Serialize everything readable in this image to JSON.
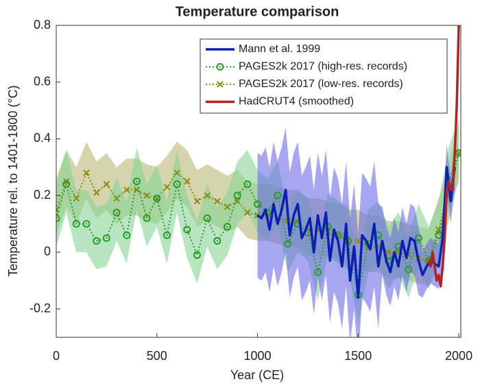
{
  "chart_data": {
    "type": "line",
    "title": "Temperature comparison",
    "x_label": "Year (CE)",
    "y_label": "Temperature rel. to 1401-1800 (°C)",
    "xlim": [
      0,
      2010
    ],
    "ylim": [
      -0.3,
      0.8
    ],
    "xticks": [
      0,
      500,
      1000,
      1500,
      2000
    ],
    "yticks": [
      -0.2,
      0,
      0.2,
      0.4,
      0.6,
      0.8
    ],
    "grid": false,
    "legend": "upper right",
    "series": [
      {
        "name": "PAGES2k 2017 (low-res. records)",
        "color": "#8a8a10",
        "band_color": "#b9b775",
        "marker": "x",
        "linestyle": "dotted",
        "x": [
          0,
          50,
          100,
          150,
          200,
          250,
          300,
          350,
          400,
          450,
          500,
          550,
          600,
          650,
          700,
          750,
          800,
          850,
          900,
          950,
          1000,
          1050,
          1100,
          1150,
          1200,
          1250,
          1300,
          1350,
          1400,
          1450,
          1500,
          1550,
          1600,
          1650,
          1700,
          1750,
          1800,
          1850,
          1900,
          1950,
          2000
        ],
        "values": [
          0.15,
          0.25,
          0.19,
          0.28,
          0.21,
          0.24,
          0.19,
          0.22,
          0.22,
          0.2,
          0.19,
          0.23,
          0.28,
          0.25,
          0.18,
          0.2,
          0.18,
          0.16,
          0.18,
          0.14,
          0.13,
          0.13,
          0.12,
          0.11,
          0.11,
          0.08,
          0.08,
          0.07,
          0.06,
          0.04,
          0.04,
          0.02,
          0.02,
          0.0,
          0.0,
          -0.01,
          -0.02,
          -0.03,
          0.08,
          0.2,
          0.35
        ],
        "lower": [
          0.06,
          0.16,
          0.1,
          0.19,
          0.12,
          0.15,
          0.1,
          0.13,
          0.13,
          0.11,
          0.1,
          0.14,
          0.19,
          0.16,
          0.09,
          0.11,
          0.09,
          0.07,
          0.09,
          0.05,
          0.04,
          0.04,
          0.03,
          0.02,
          0.02,
          -0.01,
          -0.01,
          -0.02,
          -0.03,
          -0.05,
          -0.05,
          -0.07,
          -0.07,
          -0.09,
          -0.09,
          -0.1,
          -0.11,
          -0.12,
          -0.01,
          0.11,
          0.26
        ],
        "upper": [
          0.26,
          0.36,
          0.3,
          0.39,
          0.32,
          0.35,
          0.3,
          0.33,
          0.33,
          0.31,
          0.3,
          0.34,
          0.39,
          0.36,
          0.29,
          0.31,
          0.29,
          0.27,
          0.29,
          0.25,
          0.24,
          0.24,
          0.23,
          0.22,
          0.22,
          0.19,
          0.19,
          0.18,
          0.17,
          0.15,
          0.15,
          0.13,
          0.13,
          0.11,
          0.11,
          0.1,
          0.09,
          0.08,
          0.19,
          0.31,
          0.46
        ]
      },
      {
        "name": "PAGES2k 2017 (high-res. records)",
        "color": "#2a9a2a",
        "band_color": "#86d494",
        "marker": "o",
        "linestyle": "dotted",
        "x": [
          0,
          50,
          100,
          150,
          200,
          250,
          300,
          350,
          400,
          450,
          500,
          550,
          600,
          650,
          700,
          750,
          800,
          850,
          900,
          950,
          1000,
          1050,
          1100,
          1150,
          1200,
          1250,
          1300,
          1350,
          1400,
          1450,
          1500,
          1550,
          1600,
          1650,
          1700,
          1750,
          1800,
          1850,
          1900,
          1950,
          2000
        ],
        "values": [
          0.12,
          0.24,
          0.1,
          0.1,
          0.04,
          0.05,
          0.14,
          0.06,
          0.25,
          0.12,
          0.19,
          0.06,
          0.24,
          0.08,
          -0.01,
          0.12,
          0.04,
          0.09,
          0.2,
          0.24,
          0.17,
          0.14,
          0.2,
          0.03,
          0.1,
          0.07,
          -0.07,
          0.09,
          0.06,
          0.04,
          -0.15,
          0.03,
          0.06,
          -0.03,
          0.02,
          -0.06,
          0.05,
          -0.03,
          0.06,
          0.25,
          0.35
        ],
        "lower": [
          0.02,
          0.14,
          0.0,
          0.0,
          -0.06,
          -0.05,
          0.04,
          -0.04,
          0.15,
          0.02,
          0.09,
          -0.04,
          0.14,
          -0.02,
          -0.11,
          0.02,
          -0.06,
          -0.01,
          0.1,
          0.14,
          0.07,
          0.04,
          0.1,
          -0.07,
          0.0,
          -0.03,
          -0.17,
          -0.01,
          -0.04,
          -0.06,
          -0.25,
          -0.07,
          -0.04,
          -0.13,
          -0.08,
          -0.16,
          -0.05,
          -0.13,
          -0.04,
          0.15,
          0.25
        ],
        "upper": [
          0.24,
          0.36,
          0.22,
          0.22,
          0.16,
          0.17,
          0.26,
          0.18,
          0.37,
          0.24,
          0.31,
          0.18,
          0.36,
          0.2,
          0.11,
          0.24,
          0.16,
          0.21,
          0.32,
          0.36,
          0.29,
          0.26,
          0.32,
          0.15,
          0.22,
          0.19,
          0.05,
          0.21,
          0.18,
          0.16,
          -0.03,
          0.15,
          0.18,
          0.09,
          0.14,
          0.06,
          0.17,
          0.09,
          0.18,
          0.37,
          0.47
        ]
      },
      {
        "name": "Mann et al. 1999",
        "color": "#0a1fb5",
        "band_color": "#6a6ae8",
        "marker": null,
        "linestyle": "solid",
        "x": [
          1000,
          1020,
          1040,
          1060,
          1080,
          1100,
          1120,
          1140,
          1160,
          1180,
          1200,
          1220,
          1240,
          1260,
          1280,
          1300,
          1320,
          1340,
          1360,
          1380,
          1400,
          1420,
          1440,
          1460,
          1480,
          1500,
          1520,
          1540,
          1560,
          1580,
          1600,
          1620,
          1640,
          1660,
          1680,
          1700,
          1720,
          1740,
          1760,
          1780,
          1800,
          1820,
          1840,
          1860,
          1880,
          1900,
          1920,
          1940,
          1960,
          1980
        ],
        "values": [
          0.13,
          0.12,
          0.15,
          0.08,
          0.17,
          0.1,
          0.15,
          0.22,
          0.06,
          0.13,
          0.17,
          0.05,
          0.08,
          0.12,
          0.0,
          0.13,
          0.05,
          0.14,
          -0.03,
          0.08,
          0.04,
          -0.05,
          0.1,
          -0.1,
          0.02,
          -0.16,
          0.06,
          0.04,
          0.01,
          0.1,
          -0.05,
          0.04,
          -0.03,
          -0.07,
          0.0,
          -0.05,
          0.04,
          -0.02,
          0.05,
          0.04,
          -0.03,
          -0.08,
          -0.05,
          -0.03,
          -0.04,
          -0.05,
          0.05,
          0.3,
          0.18,
          0.3
        ],
        "lower": [
          -0.09,
          -0.1,
          -0.07,
          -0.14,
          -0.05,
          -0.12,
          -0.07,
          0.0,
          -0.16,
          -0.09,
          -0.05,
          -0.17,
          -0.14,
          -0.1,
          -0.22,
          -0.09,
          -0.17,
          -0.08,
          -0.25,
          -0.14,
          -0.18,
          -0.27,
          -0.12,
          -0.32,
          -0.2,
          -0.38,
          -0.16,
          -0.18,
          -0.21,
          -0.12,
          -0.27,
          -0.08,
          -0.15,
          -0.19,
          -0.12,
          -0.17,
          -0.08,
          -0.14,
          -0.07,
          -0.08,
          -0.15,
          -0.16,
          -0.13,
          -0.11,
          -0.12,
          -0.13,
          -0.03,
          0.22,
          0.1,
          0.22
        ],
        "upper": [
          0.35,
          0.34,
          0.37,
          0.3,
          0.39,
          0.32,
          0.37,
          0.44,
          0.28,
          0.35,
          0.39,
          0.27,
          0.3,
          0.34,
          0.22,
          0.35,
          0.27,
          0.36,
          0.19,
          0.3,
          0.26,
          0.17,
          0.32,
          0.12,
          0.24,
          0.06,
          0.28,
          0.26,
          0.23,
          0.32,
          0.17,
          0.16,
          0.09,
          0.05,
          0.12,
          0.07,
          0.16,
          0.1,
          0.17,
          0.16,
          0.09,
          0.0,
          0.03,
          0.05,
          0.04,
          0.03,
          0.13,
          0.38,
          0.26,
          0.38
        ]
      },
      {
        "name": "HadCRUT4 (smoothed)",
        "color": "#b22222",
        "band_color": null,
        "marker": null,
        "linestyle": "solid",
        "x": [
          1850,
          1860,
          1870,
          1880,
          1890,
          1900,
          1910,
          1920,
          1930,
          1940,
          1950,
          1960,
          1970,
          1980,
          1990,
          2000
        ],
        "values": [
          -0.03,
          -0.05,
          0.0,
          -0.05,
          -0.1,
          -0.08,
          -0.12,
          -0.05,
          0.05,
          0.22,
          0.25,
          0.22,
          0.22,
          0.35,
          0.52,
          0.8
        ]
      }
    ],
    "legend_order": [
      2,
      1,
      0,
      3
    ]
  }
}
